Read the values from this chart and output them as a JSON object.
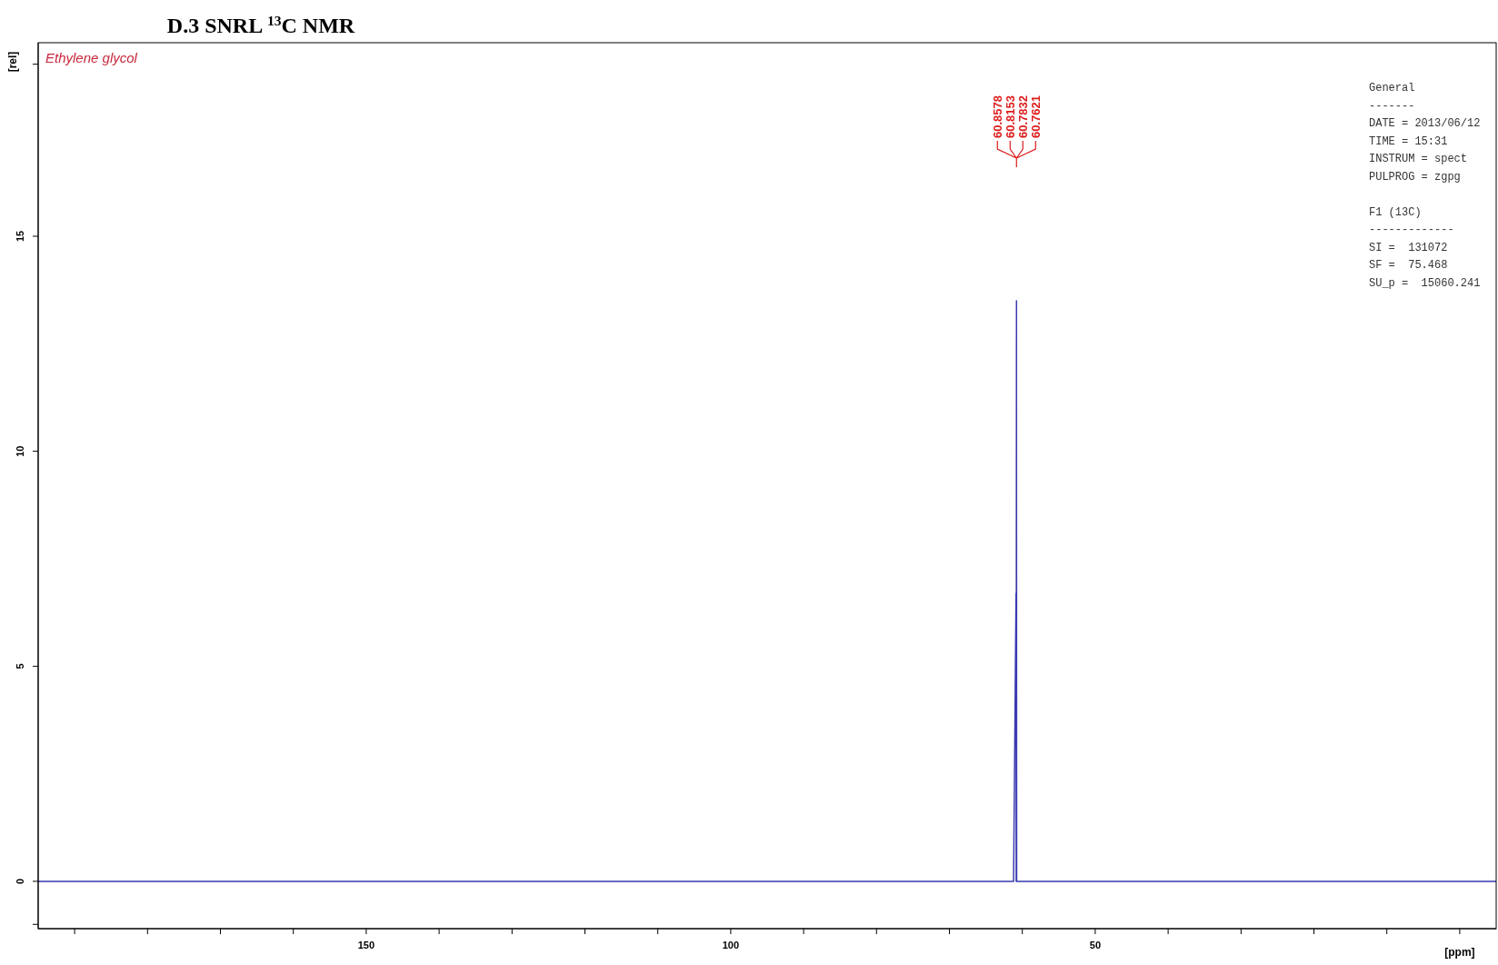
{
  "chart_data": {
    "type": "line",
    "title": "D.3 SNRL $^{13}$C NMR",
    "xlabel": "[ppm]",
    "ylabel": "[rel]",
    "x": [
      195,
      61.2,
      60.86,
      60.84,
      60.8,
      60.78,
      60.3,
      -5
    ],
    "series": [
      {
        "color": "#3a3ab0",
        "values": [
          0,
          0,
          6.7,
          0,
          13.5,
          0,
          0,
          0
        ]
      }
    ],
    "xlim": [
      195,
      -5
    ],
    "ylim": [
      -1.1,
      19.5
    ],
    "xticks": [
      {
        "value": 190,
        "label": null
      },
      {
        "value": 180,
        "label": null
      },
      {
        "value": 170,
        "label": null
      },
      {
        "value": 160,
        "label": null
      },
      150,
      {
        "value": 140,
        "label": null
      },
      {
        "value": 130,
        "label": null
      },
      {
        "value": 120,
        "label": null
      },
      {
        "value": 110,
        "label": null
      },
      100,
      {
        "value": 90,
        "label": null
      },
      {
        "value": 80,
        "label": null
      },
      {
        "value": 70,
        "label": null
      },
      {
        "value": 60,
        "label": null
      },
      50,
      {
        "value": 40,
        "label": null
      },
      {
        "value": 30,
        "label": null
      },
      {
        "value": 20,
        "label": null
      },
      {
        "value": 10,
        "label": null
      },
      {
        "value": 0,
        "label": null
      }
    ],
    "yticks": [
      {
        "value": -1,
        "label": null
      },
      0,
      5,
      10,
      15,
      {
        "value": 19,
        "label": null
      }
    ],
    "grid": false,
    "legend": false,
    "marker": "none",
    "line_style": "solid",
    "annotations": [
      "Ethylene glycol",
      "General",
      "-------",
      "DATE = 2013/06/12",
      "TIME = 15:31",
      "INSTRUM = spect",
      "PULPROG = zgpg",
      "F1 (13C)",
      "-------------",
      "SI =  131072",
      "SF =  75.468",
      "SU_p =  15060.241",
      "60.8578",
      "60.8153",
      "60.7832",
      "60.7621"
    ]
  }
}
